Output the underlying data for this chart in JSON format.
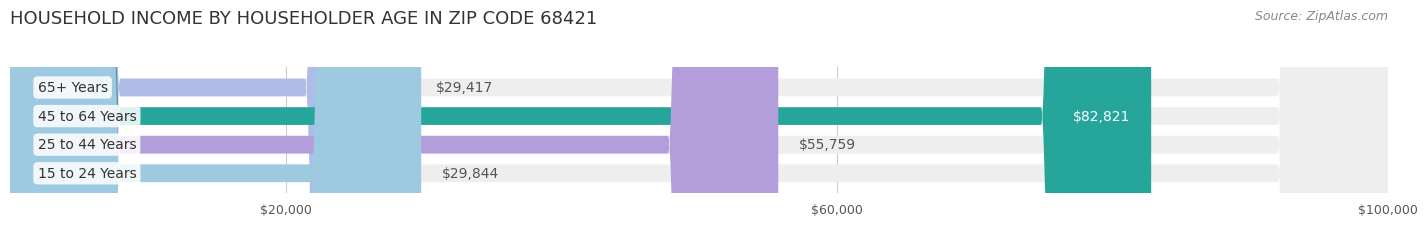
{
  "title": "HOUSEHOLD INCOME BY HOUSEHOLDER AGE IN ZIP CODE 68421",
  "source": "Source: ZipAtlas.com",
  "categories": [
    "15 to 24 Years",
    "25 to 44 Years",
    "45 to 64 Years",
    "65+ Years"
  ],
  "values": [
    29844,
    55759,
    82821,
    29417
  ],
  "bar_colors": [
    "#9ecae1",
    "#b39ddb",
    "#26a69a",
    "#b0bce8"
  ],
  "bar_background": "#eeeeee",
  "value_labels": [
    "$29,844",
    "$55,759",
    "$82,821",
    "$29,417"
  ],
  "value_label_colors": [
    "#555555",
    "#555555",
    "#ffffff",
    "#555555"
  ],
  "xlim": [
    0,
    100000
  ],
  "xticks": [
    20000,
    60000,
    100000
  ],
  "xtick_labels": [
    "$20,000",
    "$60,000",
    "$100,000"
  ],
  "background_color": "#ffffff",
  "title_fontsize": 13,
  "source_fontsize": 9,
  "bar_label_fontsize": 10,
  "tick_fontsize": 9,
  "category_fontsize": 10
}
